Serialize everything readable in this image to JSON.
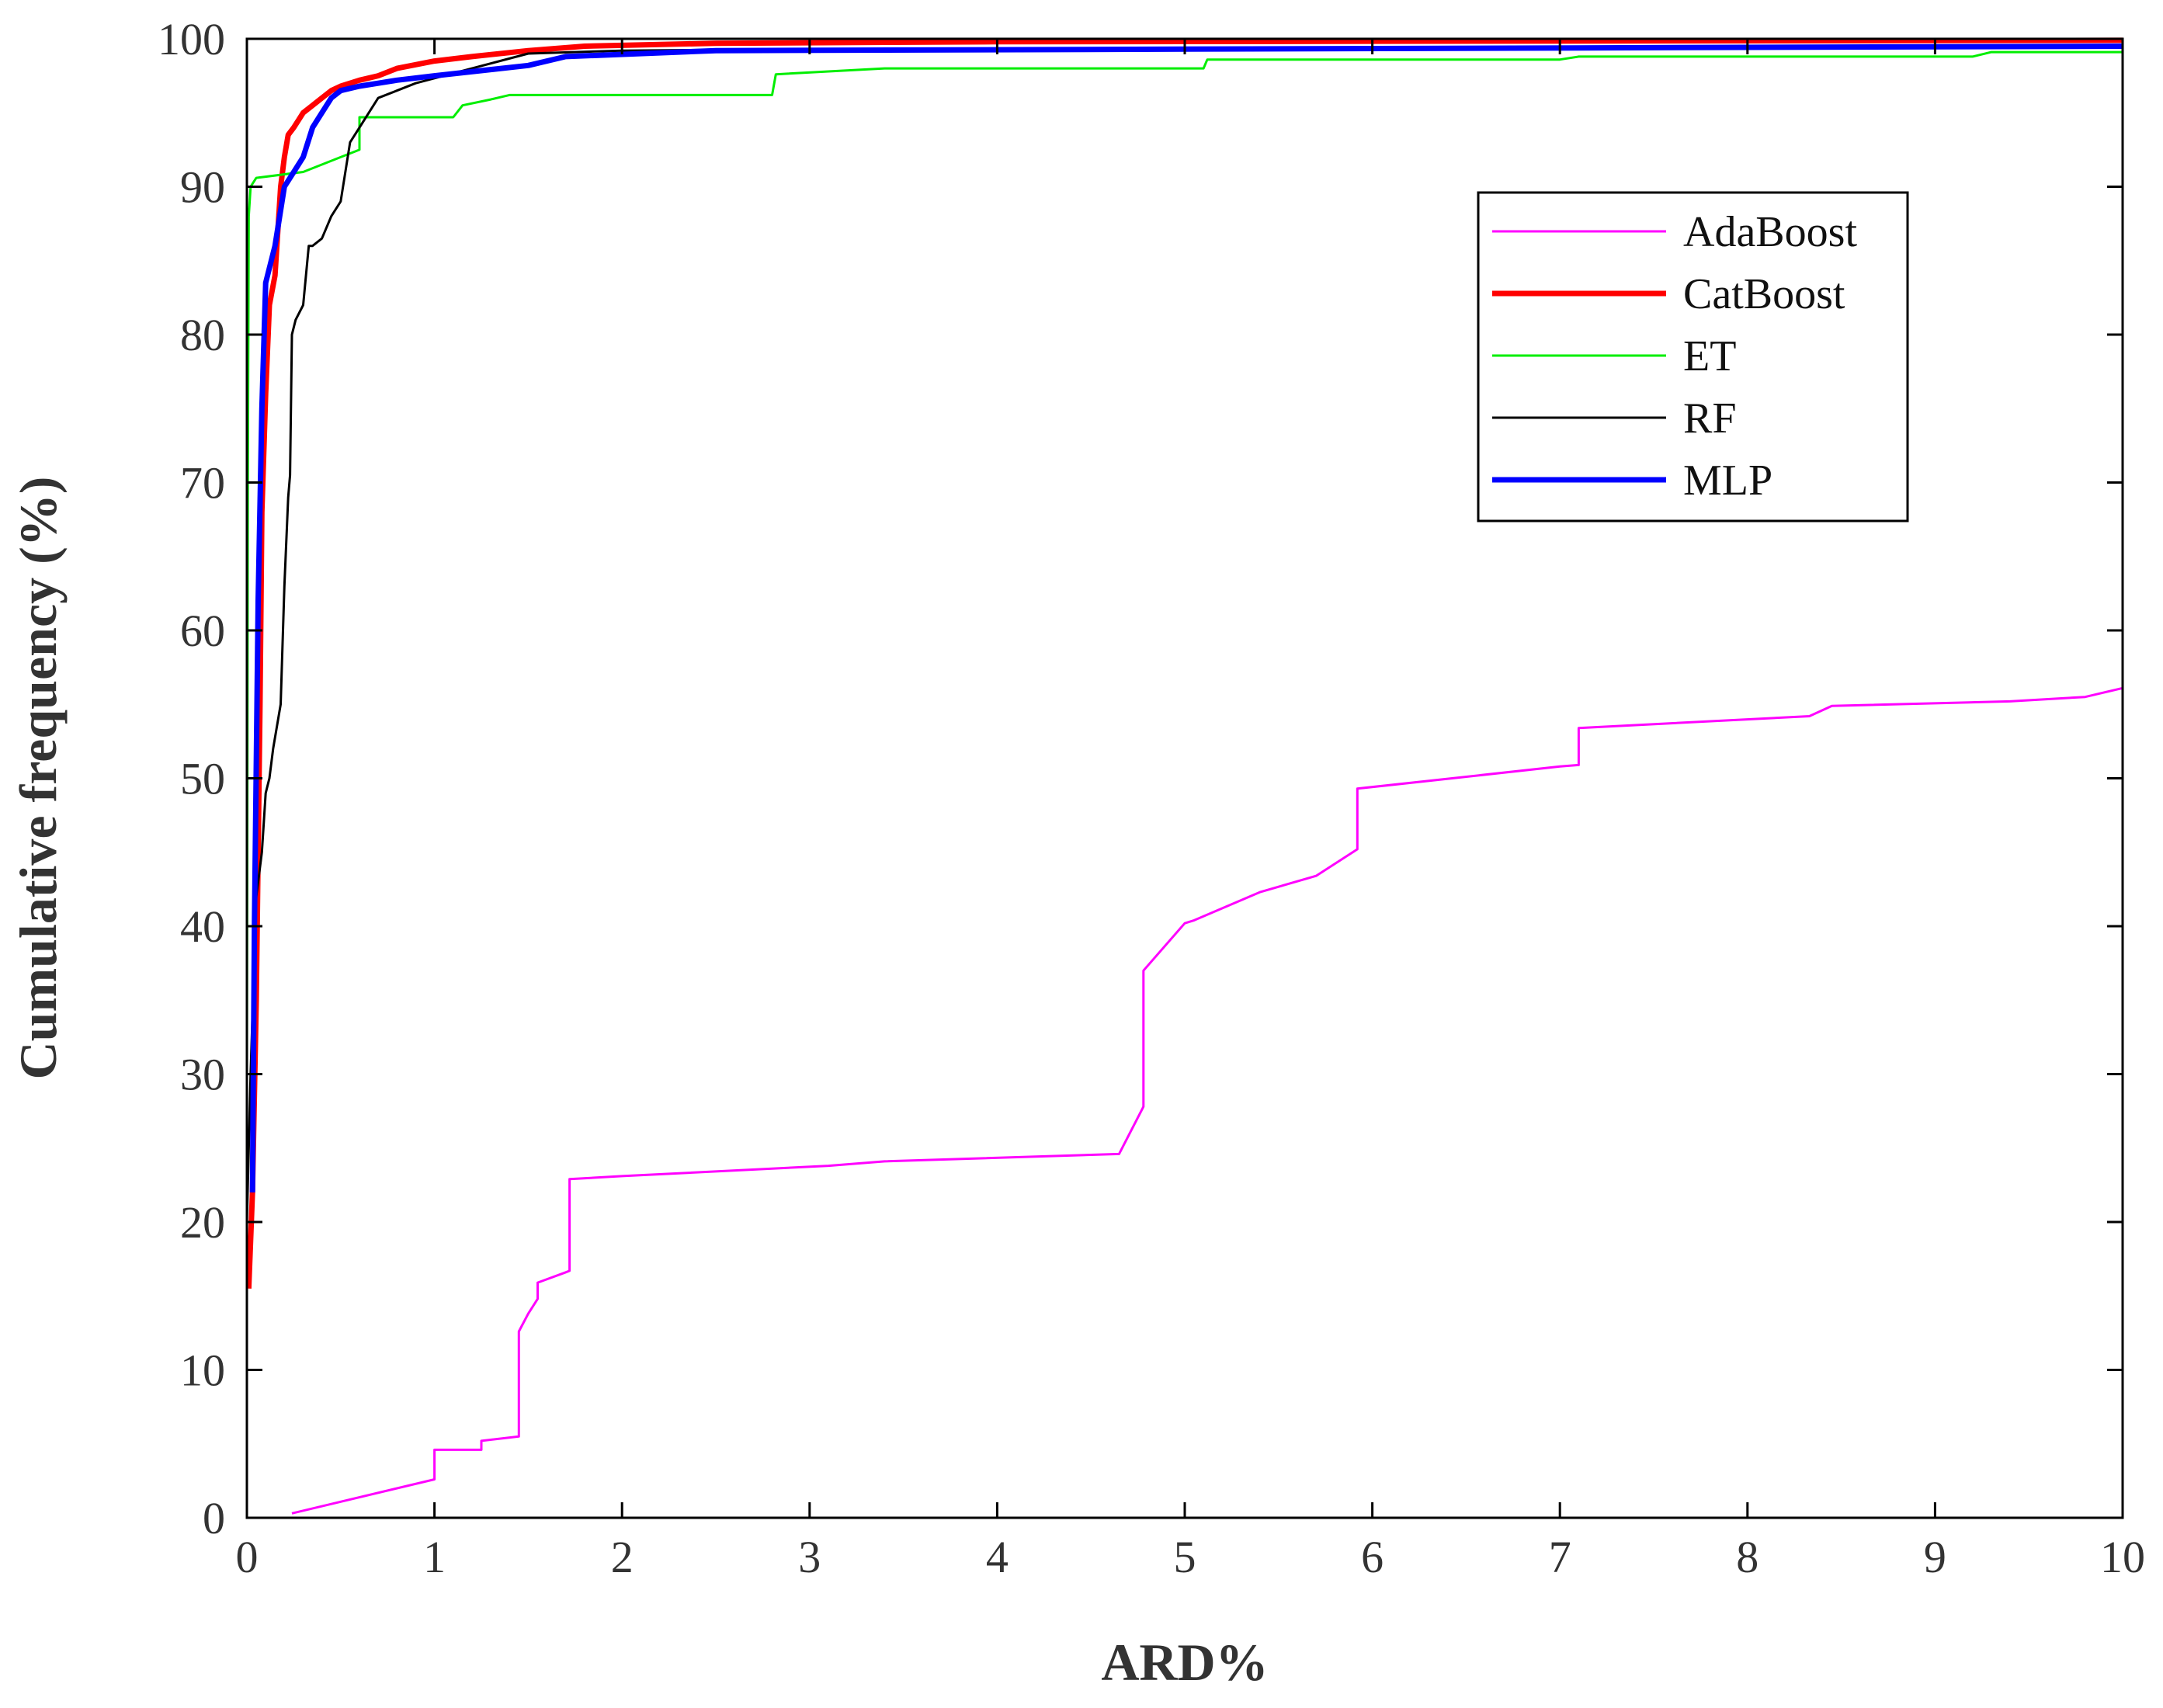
{
  "chart_data": {
    "type": "line",
    "title": "",
    "xlabel": "ARD%",
    "ylabel": "Cumulative frequency (%)",
    "xlim": [
      0,
      10
    ],
    "ylim": [
      0,
      100
    ],
    "xticks": [
      "0",
      "1",
      "2",
      "3",
      "4",
      "5",
      "6",
      "7",
      "8",
      "9",
      "10"
    ],
    "yticks": [
      "0",
      "10",
      "20",
      "30",
      "40",
      "50",
      "60",
      "70",
      "80",
      "90",
      "100"
    ],
    "grid": false,
    "legend_position": "upper-right",
    "series": [
      {
        "name": "AdaBoost",
        "color": "#ff00ff",
        "width": "thin",
        "x": [
          0.24,
          1.0,
          1.0,
          1.25,
          1.25,
          1.45,
          1.45,
          1.5,
          1.55,
          1.55,
          1.7,
          1.72,
          1.72,
          2.0,
          3.1,
          3.4,
          4.65,
          4.78,
          4.78,
          5.0,
          5.05,
          5.4,
          5.7,
          5.92,
          5.92,
          7.0,
          7.1,
          7.1,
          8.33,
          8.45,
          9.4,
          9.8,
          10.0
        ],
        "y": [
          0.3,
          2.6,
          4.6,
          4.6,
          5.2,
          5.5,
          12.6,
          13.8,
          14.8,
          15.9,
          16.6,
          16.7,
          22.9,
          23.1,
          23.8,
          24.1,
          24.6,
          27.8,
          37.0,
          40.2,
          40.4,
          42.3,
          43.4,
          45.2,
          49.3,
          50.8,
          50.9,
          53.4,
          54.2,
          54.9,
          55.2,
          55.5,
          56.1
        ]
      },
      {
        "name": "CatBoost",
        "color": "#ff0000",
        "width": "thick",
        "x": [
          0.01,
          0.03,
          0.05,
          0.07,
          0.08,
          0.1,
          0.12,
          0.15,
          0.18,
          0.2,
          0.22,
          0.25,
          0.3,
          0.35,
          0.4,
          0.45,
          0.5,
          0.6,
          0.7,
          0.8,
          1.0,
          1.2,
          1.5,
          1.8,
          2.5,
          4.0,
          10.0
        ],
        "y": [
          15.5,
          22.0,
          35.0,
          55.0,
          68.0,
          76.0,
          82.0,
          84.0,
          90.0,
          92.0,
          93.5,
          94.0,
          95.0,
          95.5,
          96.0,
          96.5,
          96.8,
          97.2,
          97.5,
          98.0,
          98.5,
          98.8,
          99.2,
          99.5,
          99.7,
          99.8,
          99.9
        ]
      },
      {
        "name": "ET",
        "color": "#00ee00",
        "width": "thin",
        "x": [
          0.0,
          0.005,
          0.01,
          0.02,
          0.05,
          0.3,
          0.5,
          0.6,
          0.6,
          1.1,
          1.15,
          1.3,
          1.4,
          2.8,
          2.82,
          3.4,
          5.1,
          5.12,
          7.0,
          7.1,
          9.2,
          9.3,
          10.0
        ],
        "y": [
          30.0,
          70.0,
          88.0,
          90.0,
          90.6,
          91.0,
          92.0,
          92.5,
          94.7,
          94.7,
          95.5,
          95.9,
          96.2,
          96.2,
          97.6,
          98.0,
          98.0,
          98.6,
          98.6,
          98.8,
          98.8,
          99.1,
          99.1
        ]
      },
      {
        "name": "RF",
        "color": "#000000",
        "width": "thin",
        "x": [
          0.0,
          0.02,
          0.05,
          0.08,
          0.1,
          0.12,
          0.14,
          0.18,
          0.2,
          0.22,
          0.23,
          0.24,
          0.26,
          0.3,
          0.33,
          0.35,
          0.4,
          0.45,
          0.5,
          0.55,
          0.6,
          0.65,
          0.7,
          0.8,
          0.9,
          1.2,
          1.5,
          2.0,
          3.0,
          10.0
        ],
        "y": [
          20.0,
          30.0,
          42.0,
          45.0,
          49.0,
          50.0,
          52.0,
          55.0,
          63.0,
          69.0,
          70.5,
          80.0,
          81.0,
          82.0,
          86.0,
          86.0,
          86.5,
          88.0,
          89.0,
          93.0,
          94.0,
          95.0,
          96.0,
          96.5,
          97.0,
          98.0,
          99.0,
          99.2,
          99.3,
          99.5
        ]
      },
      {
        "name": "MLP",
        "color": "#0000ff",
        "width": "thick",
        "x": [
          0.03,
          0.04,
          0.06,
          0.08,
          0.1,
          0.15,
          0.2,
          0.25,
          0.3,
          0.35,
          0.4,
          0.45,
          0.5,
          0.6,
          0.7,
          0.8,
          1.0,
          1.5,
          1.7,
          2.5,
          10.0
        ],
        "y": [
          22.0,
          40.0,
          62.0,
          75.0,
          83.5,
          86.0,
          90.0,
          91.0,
          92.0,
          94.0,
          95.0,
          96.0,
          96.5,
          96.8,
          97.0,
          97.2,
          97.5,
          98.2,
          98.8,
          99.2,
          99.5
        ]
      }
    ]
  }
}
